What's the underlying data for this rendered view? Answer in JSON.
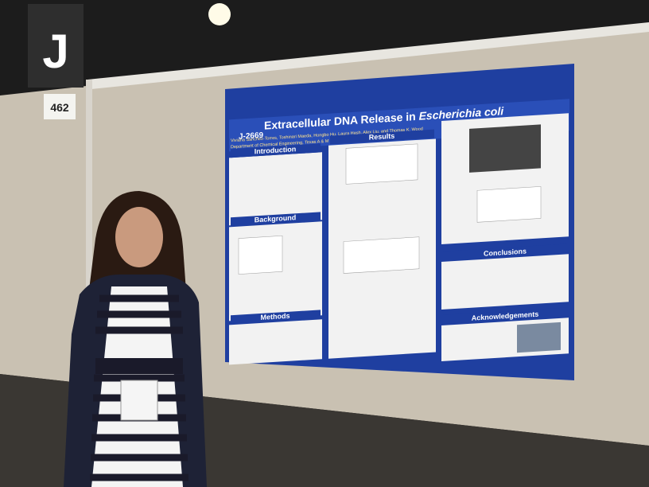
{
  "sign": {
    "letter": "J",
    "number": "462"
  },
  "poster": {
    "id": "J-2669",
    "title": {
      "text": "Extracellular DNA Release in",
      "organism": "Escherichia coli"
    },
    "authors": "Viviana Sanchez-Torres, Toshinari Maeda, Hongbo Hu, Laura Hash, Alex Liu, and Thomas K. Wood",
    "affiliation": "Department of Chemical Engineering, Texas A & M University College Station, Texas  77843-3122",
    "sections": [
      "Introduction",
      "Background",
      "Methods",
      "Results",
      "Conclusions",
      "Acknowledgements"
    ]
  }
}
